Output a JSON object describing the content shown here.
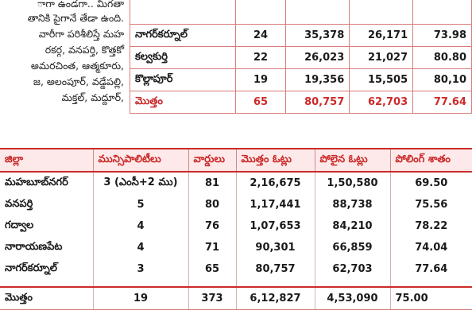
{
  "article": {
    "lines": [
      "ాగా ఉండగా.. మిగతా",
      "తానికి పైగానే తేడా ఉంది.",
      "వారీగా పరిశీలిస్తే మహ",
      "రకర్గ, వనపర్తి, కొత్తకో",
      "అమరచింత, ఆత్మకూరు,",
      "జ, అలంపూర్, వడ్డేపల్లి,",
      "మక్తల్,    మద్దూర్,"
    ]
  },
  "top_table": {
    "rows": [
      [
        "నాగర్‌కర్నూల్",
        "24",
        "35,378",
        "26,171",
        "73.98"
      ],
      [
        "కల్వకుర్తి",
        "22",
        "26,023",
        "21,027",
        "80.80"
      ],
      [
        "కొల్లాపూర్",
        "19",
        "19,356",
        "15,505",
        "80,10"
      ]
    ],
    "total": [
      "మొత్తం",
      "65",
      "80,757",
      "62,703",
      "77.64"
    ]
  },
  "main_table": {
    "headers": [
      "జిల్లా",
      "మున్సిపాలిటీలు",
      "వార్డులు",
      "మొత్తం ఓట్లు",
      "పోలైన ఓట్లు",
      "పోలింగ్ శాతం"
    ],
    "rows": [
      [
        "మహబూబ్‌నగర్",
        "3 (ఎంసీ+2 ము)",
        "81",
        "2,16,675",
        "1,50,580",
        "69.50"
      ],
      [
        "వనపర్తి",
        "5",
        "80",
        "1,17,441",
        "88,738",
        "75.56"
      ],
      [
        "గద్వాల",
        "4",
        "76",
        "1,07,653",
        "84,210",
        "78.22"
      ],
      [
        "నారాయణపేట",
        "4",
        "71",
        "90,301",
        "66,859",
        "74.04"
      ],
      [
        "నాగర్‌కర్నూల్",
        "3",
        "65",
        "80,757",
        "62,703",
        "77.64"
      ]
    ],
    "total": [
      "మొత్తం",
      "19",
      "373",
      "6,12,827",
      "4,53,090",
      "75.00"
    ]
  }
}
